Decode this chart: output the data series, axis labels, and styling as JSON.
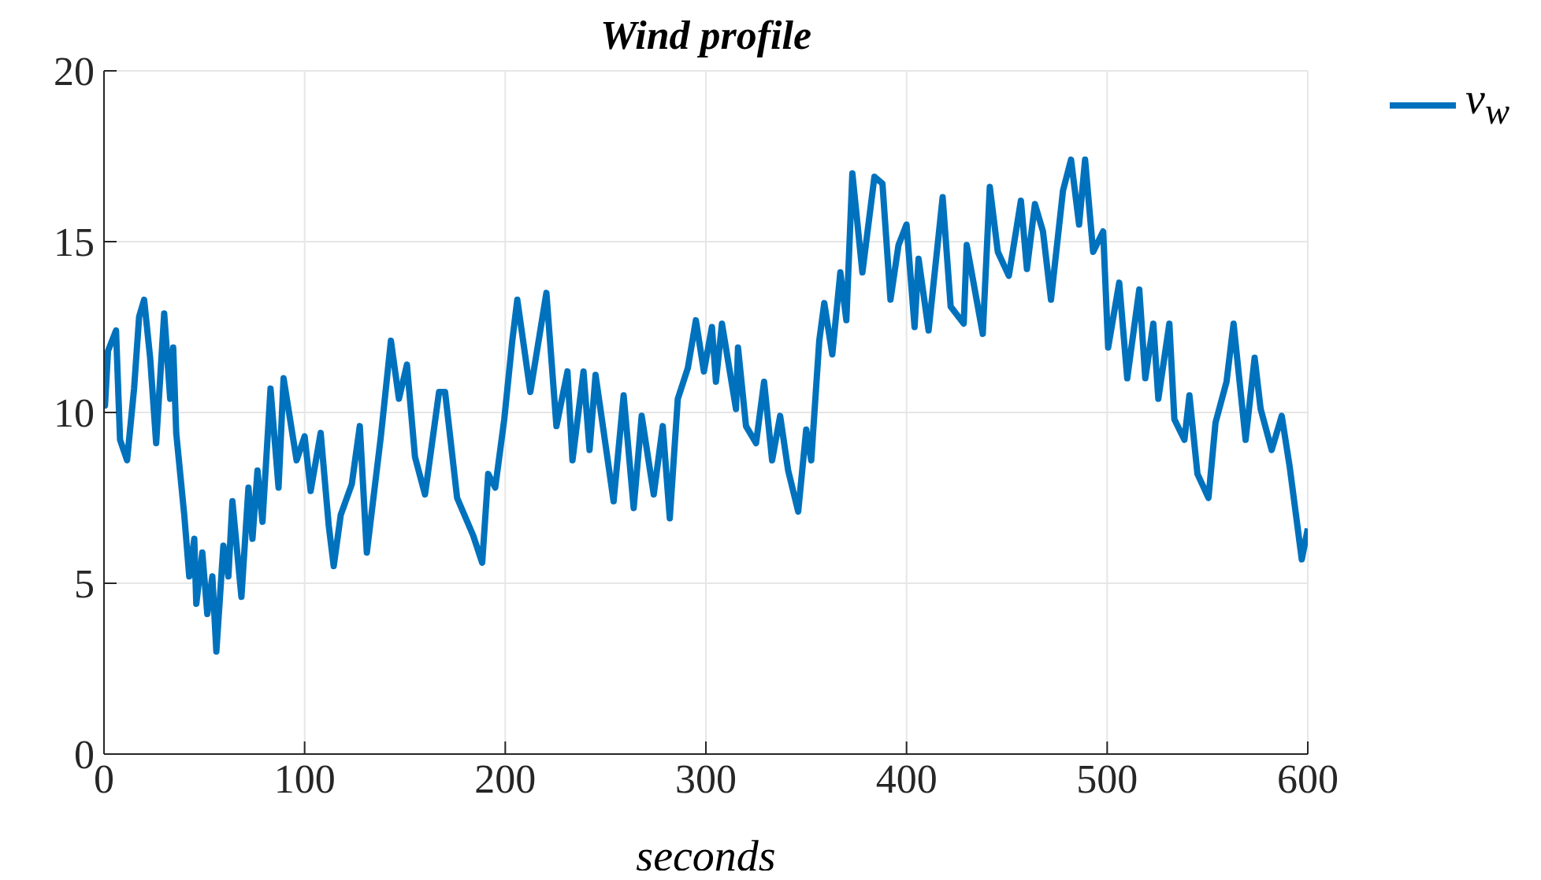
{
  "chart_data": {
    "type": "line",
    "title": "Wind profile",
    "xlabel": "seconds",
    "xlim": [
      0,
      600
    ],
    "xticks": [
      0,
      100,
      200,
      300,
      400,
      500,
      600
    ],
    "ylim": [
      0,
      20
    ],
    "yticks": [
      0,
      5,
      10,
      15,
      20
    ],
    "grid": true,
    "legend": "top right",
    "marker": "none",
    "line_style": "solid",
    "x": [
      0,
      0.5,
      2,
      6,
      8,
      11.5,
      15,
      17.5,
      20,
      23,
      26,
      30,
      33,
      34.5,
      36,
      40,
      42.5,
      45,
      46,
      49,
      51.5,
      54,
      56,
      59.5,
      62,
      64,
      68.5,
      72,
      74,
      76.5,
      79,
      83,
      87,
      89.5,
      96,
      100,
      103,
      108,
      112,
      114.5,
      118,
      123.5,
      127.5,
      131,
      138,
      143,
      147,
      151,
      155,
      160,
      167,
      170,
      176,
      184,
      188.5,
      191.5,
      195,
      199.5,
      203.5,
      206,
      212.5,
      220.5,
      225.5,
      231,
      233.5,
      239,
      242,
      245,
      254,
      259,
      264,
      268,
      274,
      278.5,
      282,
      286,
      291,
      295,
      299,
      303,
      305,
      308,
      315,
      316,
      320,
      325,
      329,
      333,
      337,
      341,
      346,
      350,
      352.5,
      356.5,
      359,
      363,
      367,
      370,
      373,
      378,
      384,
      388,
      392,
      396,
      400,
      404,
      406,
      411,
      418,
      422,
      428.5,
      430,
      438,
      441.5,
      445.5,
      451,
      457,
      460,
      464,
      468,
      472,
      478,
      482,
      486,
      489,
      493,
      498,
      500.5,
      506,
      510,
      516,
      519,
      523,
      525.5,
      531,
      533.5,
      538.5,
      541,
      545,
      550.5,
      554,
      559.5,
      563,
      569,
      573.5,
      576.5,
      582,
      587,
      591,
      597,
      600
    ],
    "series": [
      {
        "name": "v$_{w}$",
        "color": "#0072bd",
        "values": [
          11.2,
          10.2,
          11.8,
          12.4,
          9.2,
          8.6,
          10.7,
          12.8,
          13.3,
          11.6,
          9.1,
          12.9,
          10.4,
          11.9,
          9.4,
          7.0,
          5.2,
          6.3,
          4.4,
          5.9,
          4.1,
          5.2,
          3.0,
          6.1,
          5.2,
          7.4,
          4.6,
          7.8,
          6.3,
          8.3,
          6.8,
          10.7,
          7.8,
          11.0,
          8.6,
          9.3,
          7.7,
          9.4,
          6.7,
          5.5,
          7.0,
          7.9,
          9.6,
          5.9,
          9.3,
          12.1,
          10.4,
          11.4,
          8.7,
          7.6,
          10.6,
          10.6,
          7.5,
          6.4,
          5.6,
          8.2,
          7.8,
          9.8,
          12.1,
          13.3,
          10.6,
          13.5,
          9.6,
          11.2,
          8.6,
          11.2,
          8.9,
          11.1,
          7.4,
          10.5,
          7.2,
          9.9,
          7.6,
          9.6,
          6.9,
          10.4,
          11.3,
          12.7,
          11.2,
          12.5,
          10.9,
          12.6,
          10.1,
          11.9,
          9.6,
          9.1,
          10.9,
          8.6,
          9.9,
          8.3,
          7.1,
          9.5,
          8.6,
          12.1,
          13.2,
          11.7,
          14.1,
          12.7,
          17.0,
          14.1,
          16.9,
          16.7,
          13.3,
          14.9,
          15.5,
          12.5,
          14.5,
          12.4,
          16.3,
          13.1,
          12.6,
          14.9,
          12.3,
          16.6,
          14.7,
          14.0,
          16.2,
          14.2,
          16.1,
          15.3,
          13.3,
          16.5,
          17.4,
          15.5,
          17.4,
          14.7,
          15.3,
          11.9,
          13.8,
          11.0,
          13.6,
          11.0,
          12.6,
          10.4,
          12.6,
          9.8,
          9.2,
          10.5,
          8.2,
          7.5,
          9.7,
          10.9,
          12.6,
          9.2,
          11.6,
          10.1,
          8.9,
          9.9,
          8.4,
          5.7,
          6.6
        ]
      }
    ]
  }
}
